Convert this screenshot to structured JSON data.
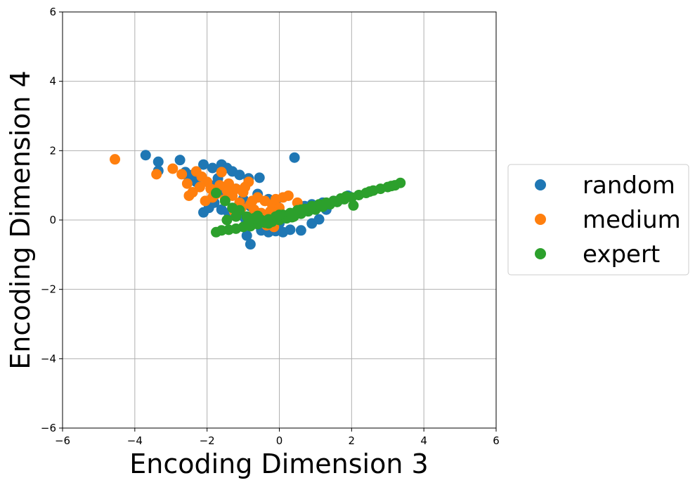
{
  "chart_data": {
    "type": "scatter",
    "title": "",
    "xlabel": "Encoding Dimension 3",
    "ylabel": "Encoding Dimension 4",
    "xlim": [
      -6,
      6
    ],
    "ylim": [
      -6,
      6
    ],
    "xticks": [
      -6,
      -4,
      -2,
      0,
      2,
      4,
      6
    ],
    "yticks": [
      -6,
      -4,
      -2,
      0,
      2,
      4,
      6
    ],
    "xtick_labels": [
      "−6",
      "−4",
      "−2",
      "0",
      "2",
      "4",
      "6"
    ],
    "ytick_labels": [
      "−6",
      "−4",
      "−2",
      "0",
      "2",
      "4",
      "6"
    ],
    "grid": true,
    "legend_position": "outside-right",
    "series": [
      {
        "name": "random",
        "color": "#1f77b4",
        "points": [
          [
            -3.7,
            1.87
          ],
          [
            -3.35,
            1.68
          ],
          [
            -3.35,
            1.42
          ],
          [
            -2.75,
            1.73
          ],
          [
            -2.6,
            1.38
          ],
          [
            -2.4,
            1.3
          ],
          [
            -2.1,
            1.6
          ],
          [
            -1.85,
            1.5
          ],
          [
            -1.6,
            1.6
          ],
          [
            -1.45,
            1.5
          ],
          [
            -1.3,
            1.4
          ],
          [
            -1.1,
            1.3
          ],
          [
            -0.85,
            1.2
          ],
          [
            -0.55,
            1.22
          ],
          [
            0.42,
            1.8
          ],
          [
            -2.1,
            0.22
          ],
          [
            -1.95,
            0.35
          ],
          [
            -1.8,
            0.5
          ],
          [
            -1.6,
            0.3
          ],
          [
            -1.4,
            0.2
          ],
          [
            -1.2,
            0.12
          ],
          [
            -0.95,
            0.05
          ],
          [
            -0.7,
            -0.1
          ],
          [
            -0.5,
            -0.3
          ],
          [
            -0.3,
            -0.35
          ],
          [
            -0.1,
            -0.32
          ],
          [
            0.1,
            -0.35
          ],
          [
            0.3,
            -0.28
          ],
          [
            0.6,
            -0.3
          ],
          [
            -0.9,
            -0.45
          ],
          [
            -0.8,
            -0.7
          ],
          [
            0.9,
            -0.1
          ],
          [
            1.1,
            0.02
          ],
          [
            1.3,
            0.3
          ],
          [
            1.5,
            0.55
          ],
          [
            1.7,
            0.6
          ],
          [
            1.9,
            0.7
          ],
          [
            0.7,
            0.4
          ],
          [
            0.9,
            0.45
          ],
          [
            1.2,
            0.5
          ],
          [
            -1.5,
            0.8
          ],
          [
            -1.2,
            0.9
          ],
          [
            -1.0,
            0.6
          ],
          [
            -0.8,
            0.4
          ],
          [
            -0.6,
            0.2
          ],
          [
            -0.4,
            0.1
          ],
          [
            -0.2,
            0.0
          ],
          [
            0.0,
            -0.1
          ],
          [
            0.2,
            0.05
          ],
          [
            0.4,
            0.15
          ],
          [
            0.6,
            0.25
          ],
          [
            0.8,
            0.3
          ],
          [
            1.0,
            0.4
          ],
          [
            -0.3,
            0.6
          ],
          [
            -0.1,
            0.55
          ],
          [
            -2.3,
            1.1
          ],
          [
            -2.5,
            1.2
          ],
          [
            -1.7,
            1.2
          ],
          [
            -1.9,
            1.0
          ],
          [
            -0.6,
            0.75
          ]
        ]
      },
      {
        "name": "medium",
        "color": "#ff7f0e",
        "points": [
          [
            -4.55,
            1.75
          ],
          [
            -3.4,
            1.32
          ],
          [
            -2.95,
            1.48
          ],
          [
            -2.7,
            1.32
          ],
          [
            -2.55,
            1.05
          ],
          [
            -2.4,
            0.8
          ],
          [
            -2.5,
            0.7
          ],
          [
            -2.3,
            1.4
          ],
          [
            -2.15,
            1.25
          ],
          [
            -2.0,
            1.1
          ],
          [
            -1.9,
            0.9
          ],
          [
            -1.75,
            0.75
          ],
          [
            -1.6,
            1.38
          ],
          [
            -1.5,
            0.6
          ],
          [
            -1.4,
            1.05
          ],
          [
            -1.3,
            0.7
          ],
          [
            -1.2,
            0.9
          ],
          [
            -1.1,
            0.5
          ],
          [
            -1.0,
            0.8
          ],
          [
            -0.85,
            1.1
          ],
          [
            -0.8,
            0.45
          ],
          [
            -0.7,
            0.3
          ],
          [
            -0.6,
            0.65
          ],
          [
            -0.5,
            0.2
          ],
          [
            -0.4,
            0.55
          ],
          [
            -0.3,
            0.1
          ],
          [
            -0.2,
            0.45
          ],
          [
            -0.1,
            0.6
          ],
          [
            0.0,
            0.35
          ],
          [
            0.1,
            0.65
          ],
          [
            0.25,
            0.7
          ],
          [
            0.5,
            0.5
          ],
          [
            -0.35,
            -0.15
          ],
          [
            -0.15,
            -0.2
          ],
          [
            -0.95,
            0.95
          ],
          [
            -1.45,
            0.85
          ],
          [
            -1.85,
            0.65
          ],
          [
            -2.05,
            0.55
          ],
          [
            -1.25,
            0.25
          ],
          [
            -0.55,
            0.0
          ],
          [
            -0.75,
            0.55
          ],
          [
            -1.65,
            1.0
          ],
          [
            -2.2,
            0.95
          ],
          [
            -0.25,
            0.25
          ],
          [
            0.05,
            0.15
          ],
          [
            -1.05,
            0.35
          ]
        ]
      },
      {
        "name": "expert",
        "color": "#2ca02c",
        "points": [
          [
            -1.75,
            -0.35
          ],
          [
            -1.6,
            -0.3
          ],
          [
            -1.4,
            -0.28
          ],
          [
            -1.2,
            -0.25
          ],
          [
            -1.0,
            -0.2
          ],
          [
            -0.8,
            -0.18
          ],
          [
            -0.6,
            -0.12
          ],
          [
            -0.4,
            -0.08
          ],
          [
            -0.2,
            -0.05
          ],
          [
            0.0,
            0.0
          ],
          [
            0.2,
            0.05
          ],
          [
            0.4,
            0.1
          ],
          [
            0.6,
            0.18
          ],
          [
            0.8,
            0.25
          ],
          [
            1.0,
            0.3
          ],
          [
            1.2,
            0.38
          ],
          [
            1.4,
            0.45
          ],
          [
            1.6,
            0.52
          ],
          [
            1.8,
            0.6
          ],
          [
            2.0,
            0.65
          ],
          [
            2.2,
            0.72
          ],
          [
            2.4,
            0.78
          ],
          [
            2.6,
            0.85
          ],
          [
            2.8,
            0.9
          ],
          [
            3.0,
            0.95
          ],
          [
            3.2,
            1.0
          ],
          [
            3.35,
            1.07
          ],
          [
            -1.75,
            0.78
          ],
          [
            -1.5,
            0.55
          ],
          [
            -1.3,
            0.35
          ],
          [
            -1.1,
            0.28
          ],
          [
            -0.9,
            0.1
          ],
          [
            -0.7,
            0.05
          ],
          [
            -0.5,
            0.0
          ],
          [
            -0.3,
            0.02
          ],
          [
            -0.1,
            0.1
          ],
          [
            0.1,
            0.15
          ],
          [
            0.3,
            0.2
          ],
          [
            0.5,
            0.28
          ],
          [
            0.7,
            0.32
          ],
          [
            0.9,
            0.4
          ],
          [
            1.1,
            0.45
          ],
          [
            1.3,
            0.5
          ],
          [
            1.5,
            0.55
          ],
          [
            1.7,
            0.62
          ],
          [
            2.05,
            0.42
          ],
          [
            -1.45,
            0.0
          ],
          [
            -1.2,
            0.1
          ],
          [
            -0.85,
            -0.05
          ],
          [
            -0.6,
            0.12
          ],
          [
            -0.3,
            -0.1
          ],
          [
            0.0,
            0.15
          ],
          [
            0.35,
            0.08
          ],
          [
            0.6,
            0.3
          ],
          [
            1.85,
            0.68
          ],
          [
            2.5,
            0.82
          ],
          [
            3.1,
            0.98
          ]
        ]
      }
    ]
  }
}
